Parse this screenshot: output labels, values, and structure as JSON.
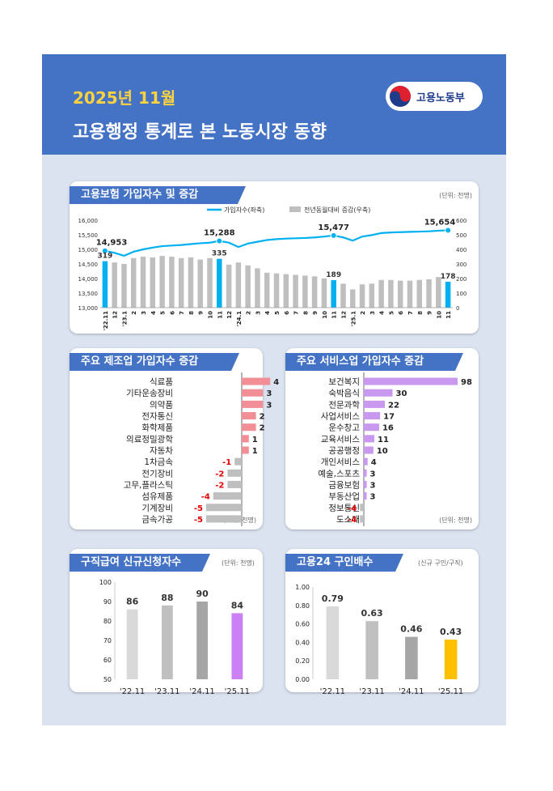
{
  "header": {
    "month": "2025년 11월",
    "title": "고용행정 통계로 본 노동시장 동향",
    "ministry": "고용노동부"
  },
  "colors": {
    "header_bg": "#4472c4",
    "page_bg": "#dbe3f1",
    "line": "#00b0f0",
    "bar_gray": "#bfbfbf",
    "mfg_bar": "#f28e96",
    "svc_bar": "#c999f0",
    "highlight_purple": "#cc80f5",
    "highlight_gold": "#ffc000"
  },
  "sections": {
    "insurance": {
      "title": "고용보험 가입자수 및 증감",
      "unit": "(단위: 천명)"
    },
    "manufacturing": {
      "title": "주요 제조업 가입자수 증감",
      "unit": "(단위: 천명)"
    },
    "service": {
      "title": "주요 서비스업 가입자수 증감",
      "unit": "(단위: 천명)"
    },
    "jobseeking": {
      "title": "구직급여 신규신청자수",
      "unit": "(단위: 천명)"
    },
    "offers": {
      "title": "고용24 구인배수",
      "unit": "(신규 구인/구직)"
    }
  },
  "chart_data": [
    {
      "type": "line",
      "legend": [
        "가입자수(좌축)",
        "전년동월대비 증감(우축)"
      ],
      "categories": [
        "'22.11",
        "12",
        "'23.1",
        "2",
        "3",
        "4",
        "5",
        "6",
        "7",
        "8",
        "9",
        "10",
        "11",
        "12",
        "'24.1",
        "2",
        "3",
        "4",
        "5",
        "6",
        "7",
        "8",
        "9",
        "10",
        "11",
        "12",
        "'25.1",
        "2",
        "3",
        "4",
        "5",
        "6",
        "7",
        "8",
        "9",
        "10",
        "11"
      ],
      "series": [
        {
          "name": "가입자수(좌축)",
          "axis": "left",
          "values": [
            14953,
            14880,
            14780,
            14920,
            15000,
            15060,
            15110,
            15130,
            15150,
            15180,
            15210,
            15230,
            15288,
            15230,
            15080,
            15200,
            15260,
            15320,
            15350,
            15370,
            15380,
            15390,
            15410,
            15440,
            15477,
            15410,
            15300,
            15440,
            15490,
            15560,
            15580,
            15590,
            15600,
            15610,
            15620,
            15640,
            15654
          ]
        },
        {
          "name": "전년동월대비 증감(우축)",
          "axis": "right",
          "values": [
            319,
            310,
            300,
            340,
            350,
            345,
            355,
            350,
            340,
            345,
            330,
            340,
            335,
            295,
            310,
            290,
            270,
            240,
            235,
            230,
            225,
            220,
            215,
            200,
            189,
            165,
            125,
            160,
            165,
            190,
            190,
            185,
            185,
            190,
            195,
            210,
            178
          ]
        }
      ],
      "labels": [
        {
          "category": "'22.11",
          "left": 14953,
          "right": 319
        },
        {
          "category": "11",
          "left": 15288,
          "right": 335
        },
        {
          "category": "11",
          "left": 15477,
          "right": 189
        },
        {
          "category": "11",
          "left": 15654,
          "right": 178
        }
      ],
      "yleft": {
        "ticks": [
          "13,000",
          "13,500",
          "14,000",
          "14,500",
          "15,000",
          "15,500",
          "16,000"
        ],
        "lim": [
          13000,
          16000
        ]
      },
      "yright": {
        "ticks": [
          "0",
          "100",
          "200",
          "300",
          "400",
          "500",
          "600"
        ],
        "lim": [
          0,
          600
        ]
      }
    },
    {
      "type": "bar",
      "orientation": "horizontal",
      "categories": [
        "식료품",
        "기타운송장비",
        "의약품",
        "전자통신",
        "화학제품",
        "의료정밀광학",
        "자동차",
        "1차금속",
        "전기장비",
        "고무,플라스틱",
        "섬유제품",
        "기계장비",
        "금속가공"
      ],
      "values": [
        4,
        3,
        3,
        2,
        2,
        1,
        1,
        -1,
        -2,
        -2,
        -4,
        -5,
        -5
      ]
    },
    {
      "type": "bar",
      "orientation": "horizontal",
      "categories": [
        "보건복지",
        "숙박음식",
        "전문과학",
        "사업서비스",
        "운수창고",
        "교육서비스",
        "공공행정",
        "개인서비스",
        "예술,스포츠",
        "금융보험",
        "부동산업",
        "정보통신",
        "도소매"
      ],
      "values": [
        98,
        30,
        22,
        17,
        16,
        11,
        10,
        4,
        3,
        3,
        3,
        -4,
        -4
      ]
    },
    {
      "type": "bar",
      "categories": [
        "'22.11",
        "'23.11",
        "'24.11",
        "'25.11"
      ],
      "values": [
        86,
        88,
        90,
        84
      ],
      "ylim": [
        50,
        100
      ],
      "yticks": [
        "50",
        "60",
        "70",
        "80",
        "90",
        "100"
      ]
    },
    {
      "type": "bar",
      "categories": [
        "'22.11",
        "'23.11",
        "'24.11",
        "'25.11"
      ],
      "values": [
        0.79,
        0.63,
        0.46,
        0.43
      ],
      "ylim": [
        0,
        1
      ],
      "yticks": [
        "0.00",
        "0.20",
        "0.40",
        "0.60",
        "0.80",
        "1.00"
      ]
    }
  ]
}
